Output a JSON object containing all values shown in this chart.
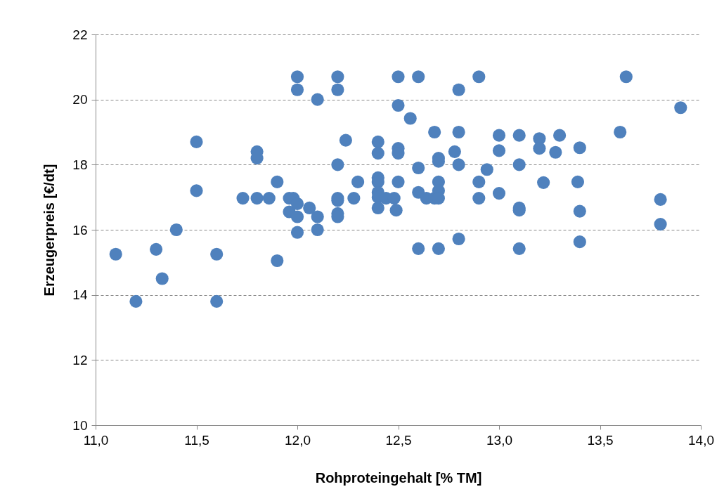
{
  "chart_data": {
    "type": "scatter",
    "xlabel": "Rohproteingehalt [% TM]",
    "ylabel": "Erzeugerpreis [€/dt]",
    "marker": "circle",
    "grid": "y",
    "line_style": "dashed",
    "xlim": [
      11,
      14
    ],
    "ylim": [
      10,
      22
    ],
    "xticks": [
      {
        "value": 11,
        "label": "11,0"
      },
      {
        "value": 11.5,
        "label": "11,5"
      },
      {
        "value": 12,
        "label": "12,0"
      },
      {
        "value": 12.5,
        "label": "12,5"
      },
      {
        "value": 13,
        "label": "13,0"
      },
      {
        "value": 13.5,
        "label": "13,5"
      },
      {
        "value": 14,
        "label": "14,0"
      }
    ],
    "yticks": [
      10,
      12,
      14,
      16,
      18,
      20,
      22
    ],
    "series": [
      {
        "color": "#4f81bd",
        "x": [
          11.1,
          11.2,
          11.3,
          11.33,
          11.4,
          11.5,
          11.5,
          11.6,
          11.6,
          11.73,
          11.8,
          11.8,
          11.8,
          11.86,
          11.9,
          11.9,
          11.96,
          11.96,
          11.98,
          12.0,
          12.0,
          12.0,
          12.0,
          12.0,
          12.06,
          12.1,
          12.1,
          12.1,
          12.2,
          12.2,
          12.2,
          12.2,
          12.2,
          12.2,
          12.2,
          12.24,
          12.28,
          12.3,
          12.4,
          12.4,
          12.4,
          12.4,
          12.4,
          12.4,
          12.4,
          12.44,
          12.48,
          12.49,
          12.5,
          12.5,
          12.5,
          12.5,
          12.5,
          12.56,
          12.6,
          12.6,
          12.6,
          12.6,
          12.64,
          12.68,
          12.68,
          12.7,
          12.7,
          12.7,
          12.7,
          12.7,
          12.7,
          12.78,
          12.8,
          12.8,
          12.8,
          12.8,
          12.9,
          12.9,
          12.9,
          12.94,
          13.0,
          13.0,
          13.0,
          13.1,
          13.1,
          13.1,
          13.1,
          13.1,
          13.2,
          13.2,
          13.22,
          13.28,
          13.3,
          13.39,
          13.4,
          13.4,
          13.4,
          13.6,
          13.63,
          13.8,
          13.8,
          13.9
        ],
        "values": [
          15.25,
          13.8,
          15.4,
          14.5,
          16.0,
          18.7,
          17.2,
          15.25,
          13.8,
          16.97,
          18.4,
          18.2,
          16.97,
          16.97,
          17.47,
          15.05,
          16.97,
          16.55,
          16.97,
          20.7,
          20.3,
          16.8,
          16.4,
          15.92,
          16.67,
          20.0,
          16.4,
          16.0,
          20.7,
          20.3,
          18.0,
          16.97,
          16.9,
          16.5,
          16.4,
          18.75,
          16.97,
          17.47,
          18.7,
          18.35,
          17.6,
          17.47,
          17.15,
          17.0,
          16.67,
          16.97,
          16.97,
          16.6,
          20.7,
          19.82,
          18.5,
          18.35,
          17.47,
          19.42,
          20.7,
          17.9,
          17.15,
          15.42,
          16.97,
          19.0,
          16.97,
          18.2,
          18.1,
          17.47,
          17.2,
          16.97,
          15.42,
          18.4,
          20.3,
          19.0,
          18.0,
          15.72,
          20.7,
          17.47,
          16.97,
          17.85,
          18.9,
          18.43,
          17.12,
          18.9,
          18.0,
          16.67,
          16.6,
          15.42,
          18.8,
          18.5,
          17.45,
          18.38,
          18.9,
          17.47,
          18.52,
          16.57,
          15.63,
          19.0,
          20.7,
          16.93,
          16.17,
          19.75
        ]
      }
    ]
  }
}
